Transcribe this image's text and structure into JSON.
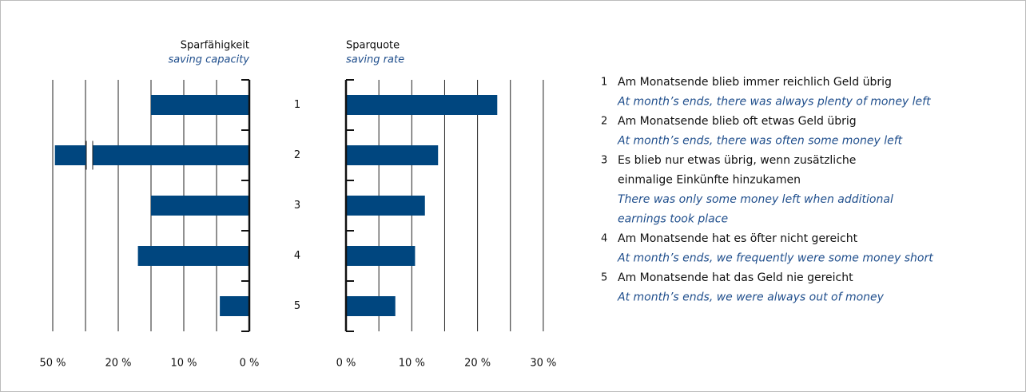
{
  "chart_data": [
    {
      "type": "bar",
      "title": "Sparfähigkeit",
      "subtitle": "saving capacity",
      "orientation": "horizontal",
      "direction": "reversed",
      "axis_break": true,
      "categories": [
        "1",
        "2",
        "3",
        "4",
        "5"
      ],
      "values": [
        15,
        49,
        15,
        17,
        4.5
      ],
      "color": "#00467f",
      "xlim": [
        0,
        50
      ],
      "xticks": [
        {
          "value": 0,
          "label": "0 %"
        },
        {
          "value": 10,
          "label": "10 %"
        },
        {
          "value": 20,
          "label": "20 %"
        },
        {
          "value": 50,
          "label": "50 %"
        }
      ],
      "grid": true
    },
    {
      "type": "bar",
      "title": "Sparquote",
      "subtitle": "saving rate",
      "orientation": "horizontal",
      "values": [
        23,
        14,
        12,
        10.5,
        7.5
      ],
      "color": "#00467f",
      "xlim": [
        0,
        30
      ],
      "xticks": [
        {
          "value": 0,
          "label": "0 %"
        },
        {
          "value": 10,
          "label": "10 %"
        },
        {
          "value": 20,
          "label": "20 %"
        },
        {
          "value": 30,
          "label": "30 %"
        }
      ],
      "grid": true
    }
  ],
  "legend": [
    {
      "number": "1",
      "de": [
        "Am Monatsende blieb immer reichlich Geld übrig"
      ],
      "en": [
        "At month’s ends, there was always plenty of money left"
      ]
    },
    {
      "number": "2",
      "de": [
        "Am Monatsende blieb oft etwas Geld übrig"
      ],
      "en": [
        "At month’s ends, there was often some money left"
      ]
    },
    {
      "number": "3",
      "de": [
        "Es blieb nur etwas übrig, wenn zusätzliche",
        "einmalige Einkünfte hinzukamen"
      ],
      "en": [
        "There was only some money left when additional",
        "earnings took place"
      ]
    },
    {
      "number": "4",
      "de": [
        "Am Monatsende hat es öfter nicht gereicht"
      ],
      "en": [
        "At month’s ends, we frequently were some money short"
      ]
    },
    {
      "number": "5",
      "de": [
        "Am Monatsende hat das Geld nie gereicht"
      ],
      "en": [
        "At month’s ends, we were always out of money"
      ]
    }
  ]
}
